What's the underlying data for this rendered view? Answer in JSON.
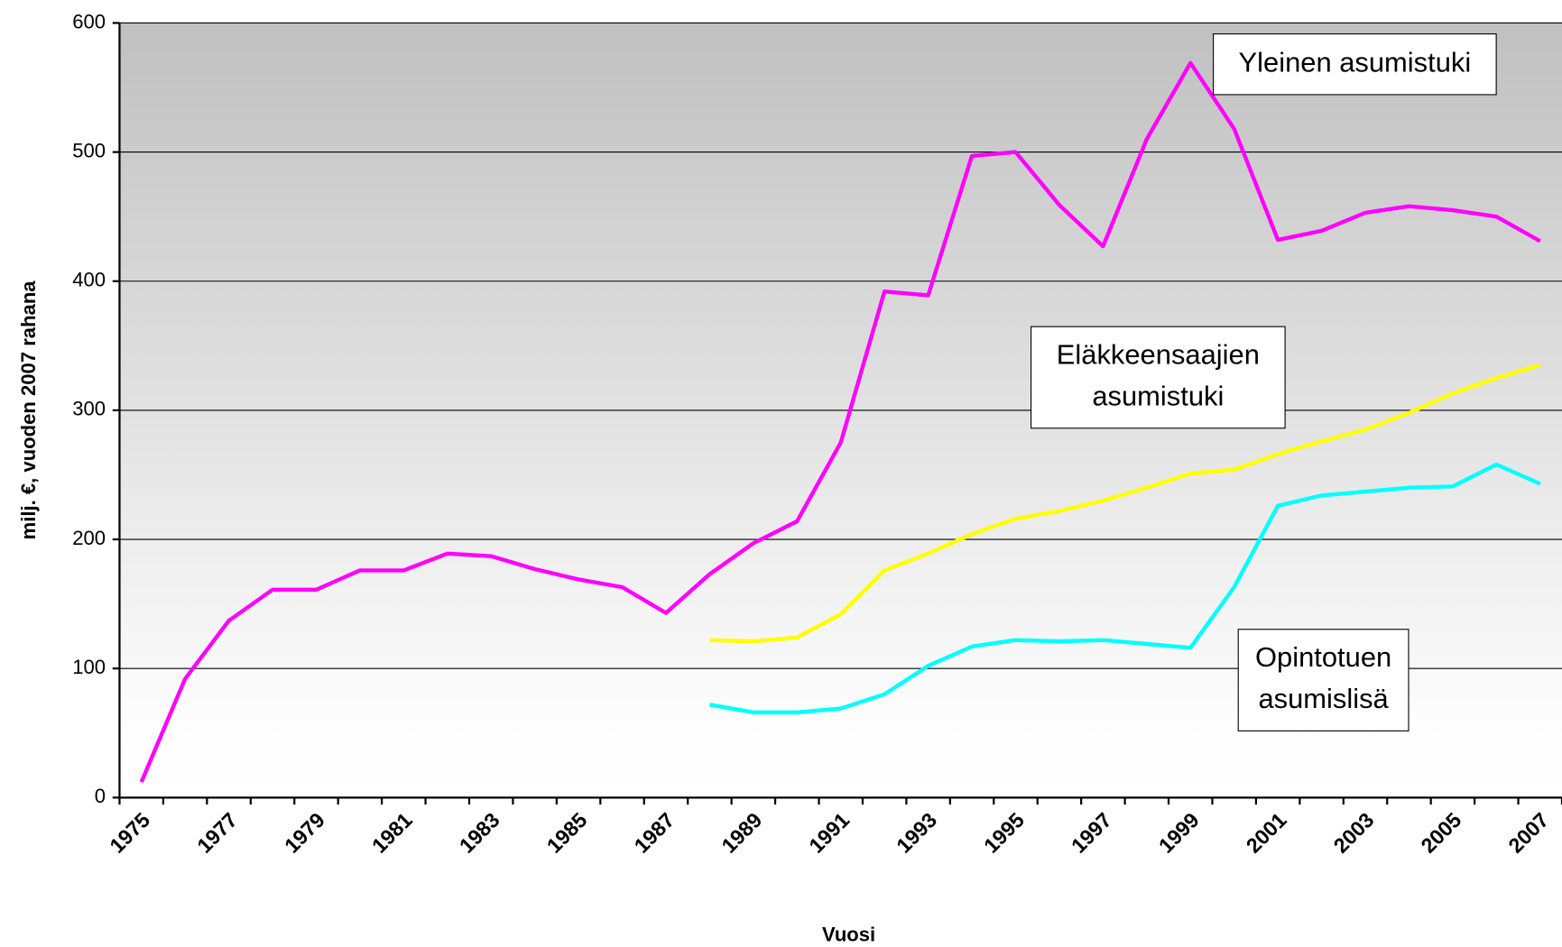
{
  "chart_data": {
    "type": "line",
    "xlabel": "Vuosi",
    "ylabel": "milj. €, vuoden 2007 rahana",
    "categories": [
      "1975",
      null,
      "1977",
      null,
      "1979",
      null,
      "1981",
      null,
      "1983",
      null,
      "1985",
      null,
      "1987",
      null,
      "1989",
      null,
      "1991",
      null,
      "1993",
      null,
      "1995",
      null,
      "1997",
      null,
      "1999",
      null,
      "2001",
      null,
      "2003",
      null,
      "2005",
      null,
      "2007"
    ],
    "series": [
      {
        "name": "Yleinen asumistuki",
        "color": "#ff00ff",
        "values": [
          12,
          92,
          137,
          161,
          161,
          176,
          176,
          189,
          187,
          177,
          169,
          163,
          143,
          173,
          197,
          214,
          275,
          392,
          389,
          497,
          500,
          459,
          427,
          510,
          569,
          518,
          432,
          439,
          453,
          458,
          455,
          450,
          431
        ]
      },
      {
        "name": "Eläkkeensaajien asumistuki",
        "color": "#ffff00",
        "values": [
          null,
          null,
          null,
          null,
          null,
          null,
          null,
          null,
          null,
          null,
          null,
          null,
          null,
          122,
          121,
          124,
          142,
          176,
          189,
          204,
          216,
          222,
          230,
          240,
          251,
          254,
          266,
          276,
          285,
          298,
          313,
          325,
          335
        ]
      },
      {
        "name": "Opintotuen asumislisä",
        "color": "#00ffff",
        "values": [
          null,
          null,
          null,
          null,
          null,
          null,
          null,
          null,
          null,
          null,
          null,
          null,
          null,
          72,
          66,
          66,
          69,
          80,
          102,
          117,
          122,
          121,
          122,
          119,
          116,
          163,
          226,
          234,
          237,
          240,
          241,
          258,
          243
        ]
      }
    ],
    "ylim": [
      0,
      600
    ],
    "yticks": [
      0,
      100,
      200,
      300,
      400,
      500,
      600
    ],
    "grid": true
  }
}
